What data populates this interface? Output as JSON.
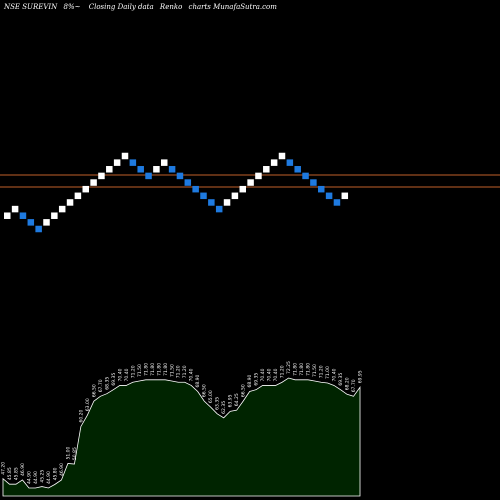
{
  "header": {
    "symbol": "NSE SUREVIN",
    "change": "8%~",
    "description": "Closing Daily data",
    "chart_kind": "Renko",
    "source": "charts MunafaSutra.com"
  },
  "colors": {
    "background": "#000000",
    "up_brick": "#ffffff",
    "down_brick": "#1e7ae0",
    "reference_line": "#c0602a",
    "volume_fill": "#002400",
    "volume_stroke": "#ffffff"
  },
  "chart_data": {
    "type": "renko",
    "brick_directions": [
      "up",
      "up",
      "down",
      "down",
      "down",
      "up",
      "up",
      "up",
      "up",
      "up",
      "up",
      "up",
      "up",
      "up",
      "up",
      "up",
      "down",
      "down",
      "down",
      "up",
      "up",
      "down",
      "down",
      "down",
      "down",
      "down",
      "down",
      "down",
      "up",
      "up",
      "up",
      "up",
      "up",
      "up",
      "up",
      "up",
      "down",
      "down",
      "down",
      "down",
      "down",
      "down",
      "down",
      "up"
    ],
    "reference_lines": [
      47,
      63
    ],
    "volume_labels": [
      "47.20",
      "45.85",
      "45.85",
      "46.90",
      "44.90",
      "44.90",
      "45.25",
      "44.90",
      "45.80",
      "46.90",
      "51.00",
      "50.85",
      "60.20",
      "63.00",
      "66.50",
      "67.70",
      "68.35",
      "69.35",
      "70.40",
      "70.40",
      "71.20",
      "71.50",
      "71.80",
      "71.80",
      "71.80",
      "71.80",
      "71.50",
      "71.20",
      "71.20",
      "70.40",
      "68.90",
      "66.50",
      "65.00",
      "63.35",
      "62.35",
      "63.95",
      "64.25",
      "66.50",
      "68.90",
      "69.35",
      "70.40",
      "70.40",
      "70.40",
      "71.20",
      "72.25",
      "71.80",
      "71.80",
      "71.80",
      "71.50",
      "71.20",
      "71.00",
      "70.40",
      "69.35",
      "68.20",
      "67.70",
      "69.95"
    ]
  }
}
